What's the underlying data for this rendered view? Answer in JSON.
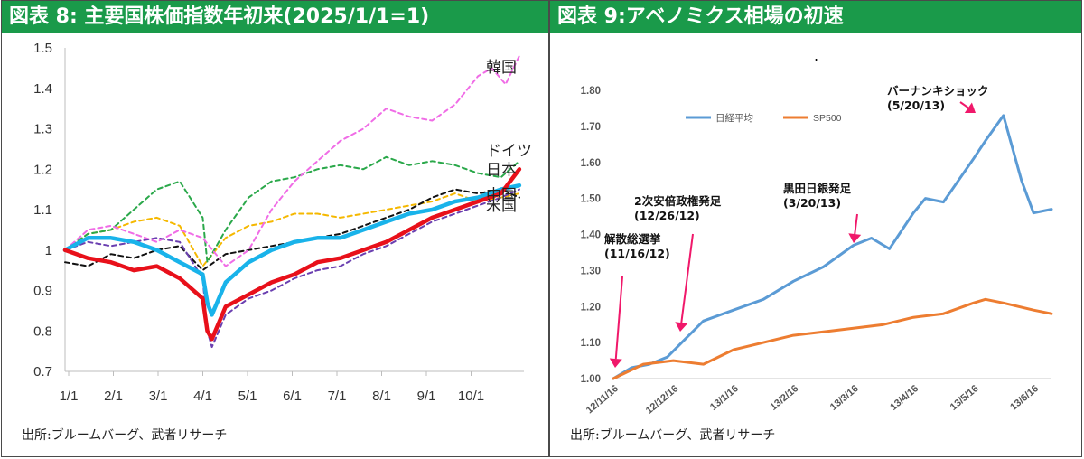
{
  "colors": {
    "header_bg": "#1a9a4a",
    "korea": "#f06ce6",
    "germany": "#2aa84a",
    "japan": "#e8101a",
    "china": "#6a3fb0",
    "us": "#19b3ea",
    "black_series": "#111111",
    "gold_series": "#f5b800",
    "nikkei": "#5b9bd5",
    "sp500": "#ed7d31",
    "arrow": "#f0186a"
  },
  "left": {
    "header": "図表 8: 主要国株価指数年初来(2025/1/1=1)",
    "source": "出所:ブルームバーグ、武者リサーチ"
  },
  "right": {
    "header": "図表 9:アベノミクス相場の初速",
    "source": "出所:ブルームバーグ、武者リサーチ",
    "dot": "."
  },
  "chart_data": [
    {
      "type": "line",
      "title": "主要国株価指数年初来(2025/1/1=1)",
      "xlabel": "",
      "ylabel": "",
      "ylim": [
        0.7,
        1.5
      ],
      "yticks": [
        "0.7",
        "0.8",
        "0.9",
        "1",
        "1.1",
        "1.2",
        "1.3",
        "1.4",
        "1.5"
      ],
      "xticks": [
        "1/1",
        "2/1",
        "3/1",
        "4/1",
        "5/1",
        "6/1",
        "7/1",
        "8/1",
        "9/1",
        "10/1"
      ],
      "grid": false,
      "series": [
        {
          "name": "韓国",
          "style": "dashed",
          "x": [
            0,
            0.5,
            1,
            1.5,
            2,
            2.5,
            3,
            3.5,
            4,
            4.5,
            5,
            5.5,
            6,
            6.5,
            7,
            7.5,
            8,
            8.5,
            9,
            9.3,
            9.6,
            9.9
          ],
          "values": [
            1.0,
            1.05,
            1.06,
            1.04,
            1.02,
            1.05,
            1.03,
            0.96,
            1.0,
            1.1,
            1.17,
            1.22,
            1.27,
            1.3,
            1.35,
            1.33,
            1.32,
            1.36,
            1.43,
            1.45,
            1.41,
            1.48
          ]
        },
        {
          "name": "ドイツ",
          "style": "dashed",
          "x": [
            0,
            0.5,
            1,
            1.5,
            2,
            2.5,
            3,
            3.1,
            3.5,
            4,
            4.5,
            5,
            5.5,
            6,
            6.5,
            7,
            7.5,
            8,
            8.5,
            9,
            9.5,
            9.9
          ],
          "values": [
            1.0,
            1.04,
            1.05,
            1.1,
            1.15,
            1.17,
            1.08,
            0.97,
            1.05,
            1.13,
            1.17,
            1.18,
            1.2,
            1.21,
            1.2,
            1.23,
            1.21,
            1.22,
            1.21,
            1.19,
            1.18,
            1.22
          ]
        },
        {
          "name": "日本",
          "style": "solid",
          "x": [
            0,
            0.5,
            1,
            1.5,
            2,
            2.5,
            3,
            3.1,
            3.2,
            3.5,
            4,
            4.5,
            5,
            5.5,
            6,
            6.5,
            7,
            7.5,
            8,
            8.5,
            9,
            9.5,
            9.9
          ],
          "values": [
            1.0,
            0.98,
            0.97,
            0.95,
            0.96,
            0.93,
            0.88,
            0.8,
            0.78,
            0.86,
            0.89,
            0.92,
            0.94,
            0.97,
            0.98,
            1.0,
            1.02,
            1.05,
            1.08,
            1.1,
            1.12,
            1.14,
            1.2
          ]
        },
        {
          "name": "中国",
          "style": "dashed",
          "x": [
            0,
            0.5,
            1,
            1.5,
            2,
            2.5,
            3,
            3.1,
            3.2,
            3.5,
            4,
            4.5,
            5,
            5.5,
            6,
            6.5,
            7,
            7.5,
            8,
            8.5,
            9,
            9.5,
            9.9
          ],
          "values": [
            1.0,
            1.02,
            1.01,
            1.02,
            1.03,
            1.02,
            0.93,
            0.8,
            0.76,
            0.84,
            0.88,
            0.9,
            0.93,
            0.95,
            0.96,
            0.99,
            1.01,
            1.04,
            1.07,
            1.09,
            1.11,
            1.13,
            1.15
          ]
        },
        {
          "name": "米国",
          "style": "solid",
          "x": [
            0,
            0.5,
            1,
            1.5,
            2,
            2.5,
            3,
            3.1,
            3.2,
            3.5,
            4,
            4.5,
            5,
            5.5,
            6,
            6.5,
            7,
            7.5,
            8,
            8.5,
            9,
            9.5,
            9.9
          ],
          "values": [
            1.0,
            1.03,
            1.03,
            1.02,
            1.0,
            0.97,
            0.94,
            0.87,
            0.84,
            0.92,
            0.97,
            1.0,
            1.02,
            1.03,
            1.03,
            1.05,
            1.07,
            1.09,
            1.1,
            1.12,
            1.13,
            1.15,
            1.16
          ]
        },
        {
          "name": "",
          "style": "dashed",
          "x": [
            0,
            0.5,
            1,
            1.5,
            2,
            2.5,
            3,
            3.5,
            4,
            4.5,
            5,
            5.5,
            6,
            6.5,
            7,
            7.5,
            8,
            8.5,
            9,
            9.5,
            9.9
          ],
          "values": [
            0.97,
            0.96,
            0.99,
            0.98,
            1.0,
            1.01,
            0.95,
            0.99,
            1.0,
            1.01,
            1.02,
            1.03,
            1.04,
            1.06,
            1.08,
            1.1,
            1.13,
            1.15,
            1.14,
            1.15,
            1.13
          ]
        },
        {
          "name": "",
          "style": "dashed",
          "x": [
            0,
            0.5,
            1,
            1.5,
            2,
            2.5,
            3,
            3.5,
            4,
            4.5,
            5,
            5.5,
            6,
            6.5,
            7,
            7.5,
            8,
            8.5,
            9,
            9.5,
            9.9
          ],
          "values": [
            1.0,
            1.04,
            1.05,
            1.07,
            1.08,
            1.06,
            0.96,
            1.03,
            1.06,
            1.07,
            1.09,
            1.09,
            1.08,
            1.09,
            1.1,
            1.11,
            1.12,
            1.14,
            1.12,
            1.13,
            1.14
          ]
        }
      ]
    },
    {
      "type": "line",
      "title": "アベノミクス相場の初速",
      "xlabel": "",
      "ylabel": "",
      "ylim": [
        1.0,
        1.8
      ],
      "yticks": [
        "1.00",
        "1.10",
        "1.20",
        "1.30",
        "1.40",
        "1.50",
        "1.60",
        "1.70",
        "1.80"
      ],
      "xticks": [
        "12/11/16",
        "12/12/16",
        "13/1/16",
        "13/2/16",
        "13/3/16",
        "13/4/16",
        "13/5/16",
        "13/6/16"
      ],
      "grid": false,
      "legend": [
        "日経平均",
        "SP500"
      ],
      "series": [
        {
          "name": "日経平均",
          "x": [
            0,
            0.3,
            0.6,
            0.9,
            1.2,
            1.5,
            2.0,
            2.5,
            3.0,
            3.5,
            4.0,
            4.3,
            4.6,
            5.0,
            5.2,
            5.5,
            6.0,
            6.2,
            6.5,
            6.8,
            7.0,
            7.3
          ],
          "values": [
            1.0,
            1.03,
            1.04,
            1.06,
            1.11,
            1.16,
            1.19,
            1.22,
            1.27,
            1.31,
            1.37,
            1.39,
            1.36,
            1.46,
            1.5,
            1.49,
            1.61,
            1.66,
            1.73,
            1.55,
            1.46,
            1.47
          ]
        },
        {
          "name": "SP500",
          "x": [
            0,
            0.5,
            1.0,
            1.5,
            2.0,
            2.5,
            3.0,
            3.5,
            4.0,
            4.5,
            5.0,
            5.5,
            6.0,
            6.2,
            6.5,
            7.0,
            7.3
          ],
          "values": [
            1.0,
            1.04,
            1.05,
            1.04,
            1.08,
            1.1,
            1.12,
            1.13,
            1.14,
            1.15,
            1.17,
            1.18,
            1.21,
            1.22,
            1.21,
            1.19,
            1.18
          ]
        }
      ],
      "annotations": [
        {
          "text_lines": [
            "解散総選挙",
            "(11/16/12)"
          ],
          "x": 0
        },
        {
          "text_lines": [
            "2次安倍政権発足",
            "(12/26/12)"
          ],
          "x": 1.3
        },
        {
          "text_lines": [
            "黒田日銀発足",
            "(3/20/13)"
          ],
          "x": 4.1
        },
        {
          "text_lines": [
            "バーナンキショック",
            "(5/20/13)"
          ],
          "x": 6.5
        }
      ]
    }
  ]
}
